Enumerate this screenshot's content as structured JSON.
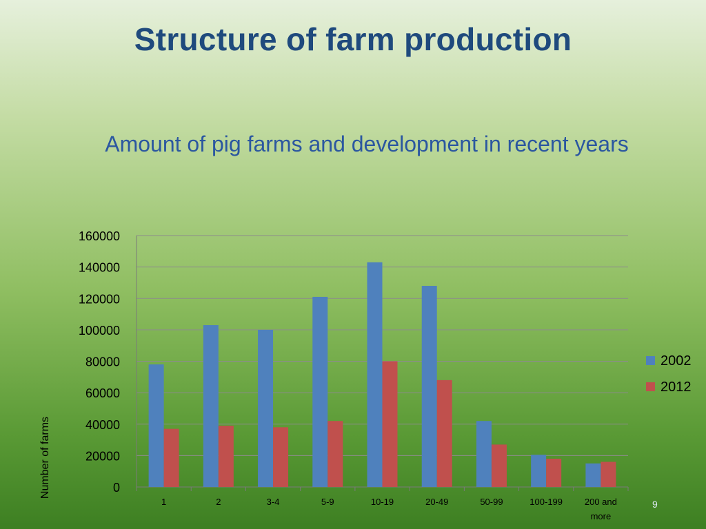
{
  "slide": {
    "title": "Structure of farm production",
    "number": "9"
  },
  "chart_data": {
    "type": "bar",
    "title": "Amount of pig farms and development in recent years",
    "xlabel": "",
    "ylabel": "Number of farms",
    "ylim": [
      0,
      160000
    ],
    "yticks": [
      0,
      20000,
      40000,
      60000,
      80000,
      100000,
      120000,
      140000,
      160000
    ],
    "grid": true,
    "legend_position": "right",
    "categories": [
      "1",
      "2",
      "3-4",
      "5-9",
      "10-19",
      "20-49",
      "50-99",
      "100-199",
      "200 and more"
    ],
    "series": [
      {
        "name": "2002",
        "color": "#4f81bd",
        "values": [
          78000,
          103000,
          100000,
          121000,
          143000,
          128000,
          42000,
          20500,
          15000
        ]
      },
      {
        "name": "2012",
        "color": "#c0504d",
        "values": [
          37000,
          39000,
          38000,
          42000,
          80000,
          68000,
          27000,
          18000,
          16000
        ]
      }
    ]
  }
}
